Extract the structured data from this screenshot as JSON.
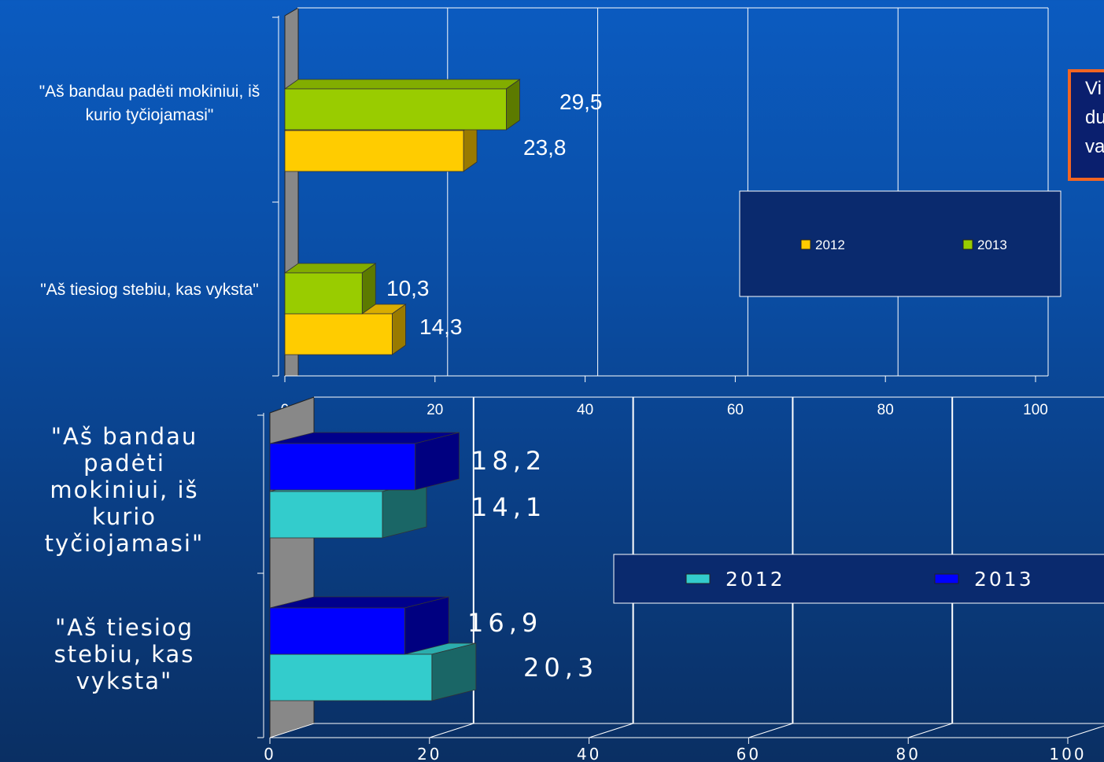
{
  "chart_data": [
    {
      "type": "bar",
      "orientation": "horizontal",
      "categories": [
        "\"Aš bandau padėti mokiniui, iš kurio tyčiojamasi\"",
        "\"Aš tiesiog stebiu, kas vyksta\""
      ],
      "series": [
        {
          "name": "2012",
          "values": [
            23.8,
            14.3
          ],
          "value_labels": [
            "23,8",
            "14,3"
          ],
          "color": "#ffcc00"
        },
        {
          "name": "2013",
          "values": [
            29.5,
            10.3
          ],
          "value_labels": [
            "29,5",
            "10,3"
          ],
          "color": "#99cc00"
        }
      ],
      "xlim": [
        0,
        100
      ],
      "ticks": [
        "0",
        "20",
        "40",
        "60",
        "80",
        "100"
      ],
      "grid": true,
      "legend": "right"
    },
    {
      "type": "bar",
      "orientation": "horizontal",
      "categories": [
        "\"Aš bandau padėti mokiniui, iš kurio tyčiojamasi\"",
        "\"Aš tiesiog stebiu, kas vyksta\""
      ],
      "series": [
        {
          "name": "2012",
          "values": [
            14.1,
            20.3
          ],
          "value_labels": [
            "14,1",
            "20,3"
          ],
          "color": "#33cccc"
        },
        {
          "name": "2013",
          "values": [
            18.2,
            16.9
          ],
          "value_labels": [
            "18,2",
            "16,9"
          ],
          "color": "#0000ff"
        }
      ],
      "xlim": [
        0,
        100
      ],
      "ticks": [
        "0",
        "20",
        "40",
        "60",
        "80",
        "100"
      ],
      "grid": true,
      "legend": "right"
    }
  ],
  "note": {
    "lines": [
      "Vi",
      "du",
      "va"
    ]
  }
}
